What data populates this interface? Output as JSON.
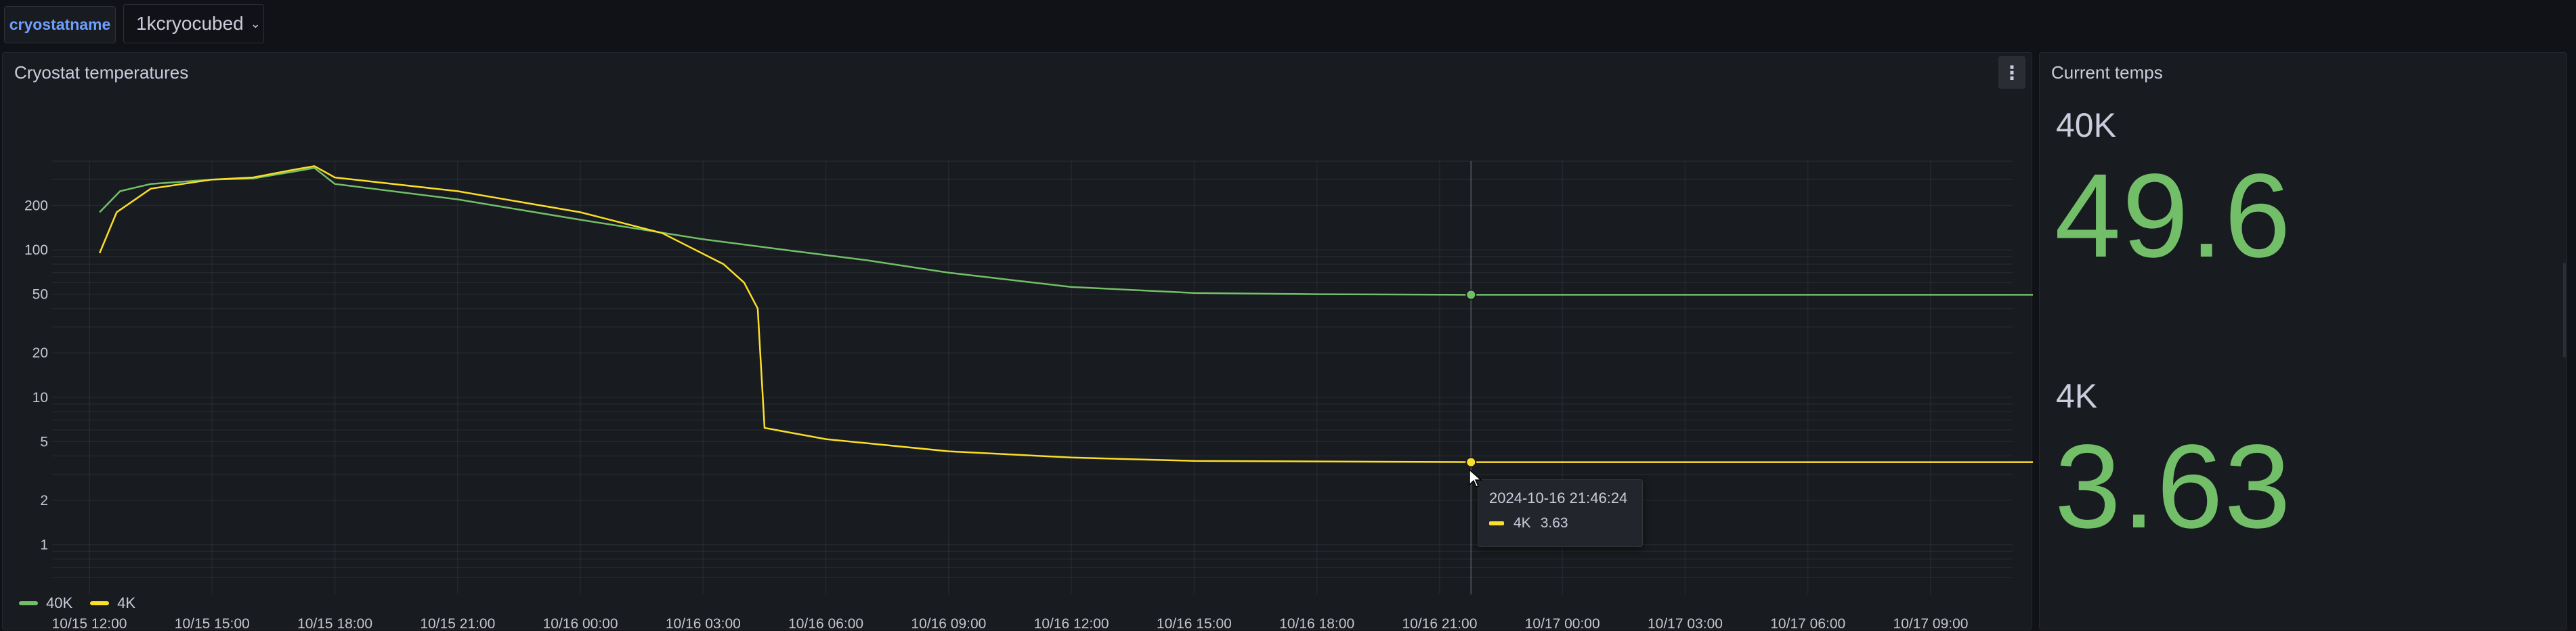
{
  "variables": {
    "label": "cryostatname",
    "selected": "1kcryocubed"
  },
  "panels": {
    "temperatures": {
      "title": "Cryostat temperatures"
    },
    "current": {
      "title": "Current temps"
    }
  },
  "chart_data": {
    "type": "line",
    "title": "Cryostat temperatures",
    "xlabel": "",
    "ylabel": "",
    "y_scale": "log",
    "y_ticks": [
      "200",
      "100",
      "50",
      "20",
      "10",
      "5",
      "2",
      "1"
    ],
    "x_ticks": [
      "10/15 12:00",
      "10/15 15:00",
      "10/15 18:00",
      "10/15 21:00",
      "10/16 00:00",
      "10/16 03:00",
      "10/16 06:00",
      "10/16 09:00",
      "10/16 12:00",
      "10/16 15:00",
      "10/16 18:00",
      "10/16 21:00",
      "10/17 00:00",
      "10/17 03:00",
      "10/17 06:00",
      "10/17 09:00"
    ],
    "legend_position": "bottom-left",
    "grid": true,
    "series": [
      {
        "name": "40K",
        "color": "#73bf69",
        "points": [
          [
            "2024-10-15 12:15",
            180
          ],
          [
            "2024-10-15 12:45",
            250
          ],
          [
            "2024-10-15 13:30",
            280
          ],
          [
            "2024-10-15 15:00",
            300
          ],
          [
            "2024-10-15 16:00",
            305
          ],
          [
            "2024-10-15 17:00",
            340
          ],
          [
            "2024-10-15 17:30",
            360
          ],
          [
            "2024-10-15 18:00",
            280
          ],
          [
            "2024-10-15 21:00",
            220
          ],
          [
            "2024-10-16 00:00",
            160
          ],
          [
            "2024-10-16 03:00",
            118
          ],
          [
            "2024-10-16 05:00",
            100
          ],
          [
            "2024-10-16 07:00",
            85
          ],
          [
            "2024-10-16 09:00",
            70
          ],
          [
            "2024-10-16 12:00",
            56
          ],
          [
            "2024-10-16 15:00",
            51
          ],
          [
            "2024-10-16 18:00",
            50
          ],
          [
            "2024-10-16 21:46",
            49.6
          ],
          [
            "2024-10-17 00:00",
            49.6
          ],
          [
            "2024-10-17 06:00",
            49.6
          ],
          [
            "2024-10-17 11:30",
            49.6
          ]
        ]
      },
      {
        "name": "4K",
        "color": "#fade2a",
        "points": [
          [
            "2024-10-15 12:15",
            95
          ],
          [
            "2024-10-15 12:40",
            180
          ],
          [
            "2024-10-15 13:30",
            260
          ],
          [
            "2024-10-15 15:00",
            300
          ],
          [
            "2024-10-15 16:00",
            310
          ],
          [
            "2024-10-15 17:00",
            350
          ],
          [
            "2024-10-15 17:30",
            370
          ],
          [
            "2024-10-15 18:00",
            310
          ],
          [
            "2024-10-15 21:00",
            250
          ],
          [
            "2024-10-16 00:00",
            180
          ],
          [
            "2024-10-16 02:00",
            130
          ],
          [
            "2024-10-16 03:30",
            80
          ],
          [
            "2024-10-16 04:00",
            60
          ],
          [
            "2024-10-16 04:20",
            40
          ],
          [
            "2024-10-16 04:30",
            6.2
          ],
          [
            "2024-10-16 06:00",
            5.2
          ],
          [
            "2024-10-16 09:00",
            4.3
          ],
          [
            "2024-10-16 12:00",
            3.9
          ],
          [
            "2024-10-16 15:00",
            3.7
          ],
          [
            "2024-10-16 21:46",
            3.63
          ],
          [
            "2024-10-17 11:30",
            3.63
          ]
        ]
      }
    ]
  },
  "legend": [
    {
      "name": "40K",
      "color": "#73bf69"
    },
    {
      "name": "4K",
      "color": "#fade2a"
    }
  ],
  "tooltip": {
    "time": "2024-10-16 21:46:24",
    "series": "4K",
    "value": "3.63",
    "color": "#fade2a"
  },
  "stats": [
    {
      "label": "40K",
      "value": "49.6"
    },
    {
      "label": "4K",
      "value": "3.63"
    }
  ],
  "icons": {
    "dropdown": "chevron-down-icon",
    "menu": "kebab-menu-icon"
  }
}
